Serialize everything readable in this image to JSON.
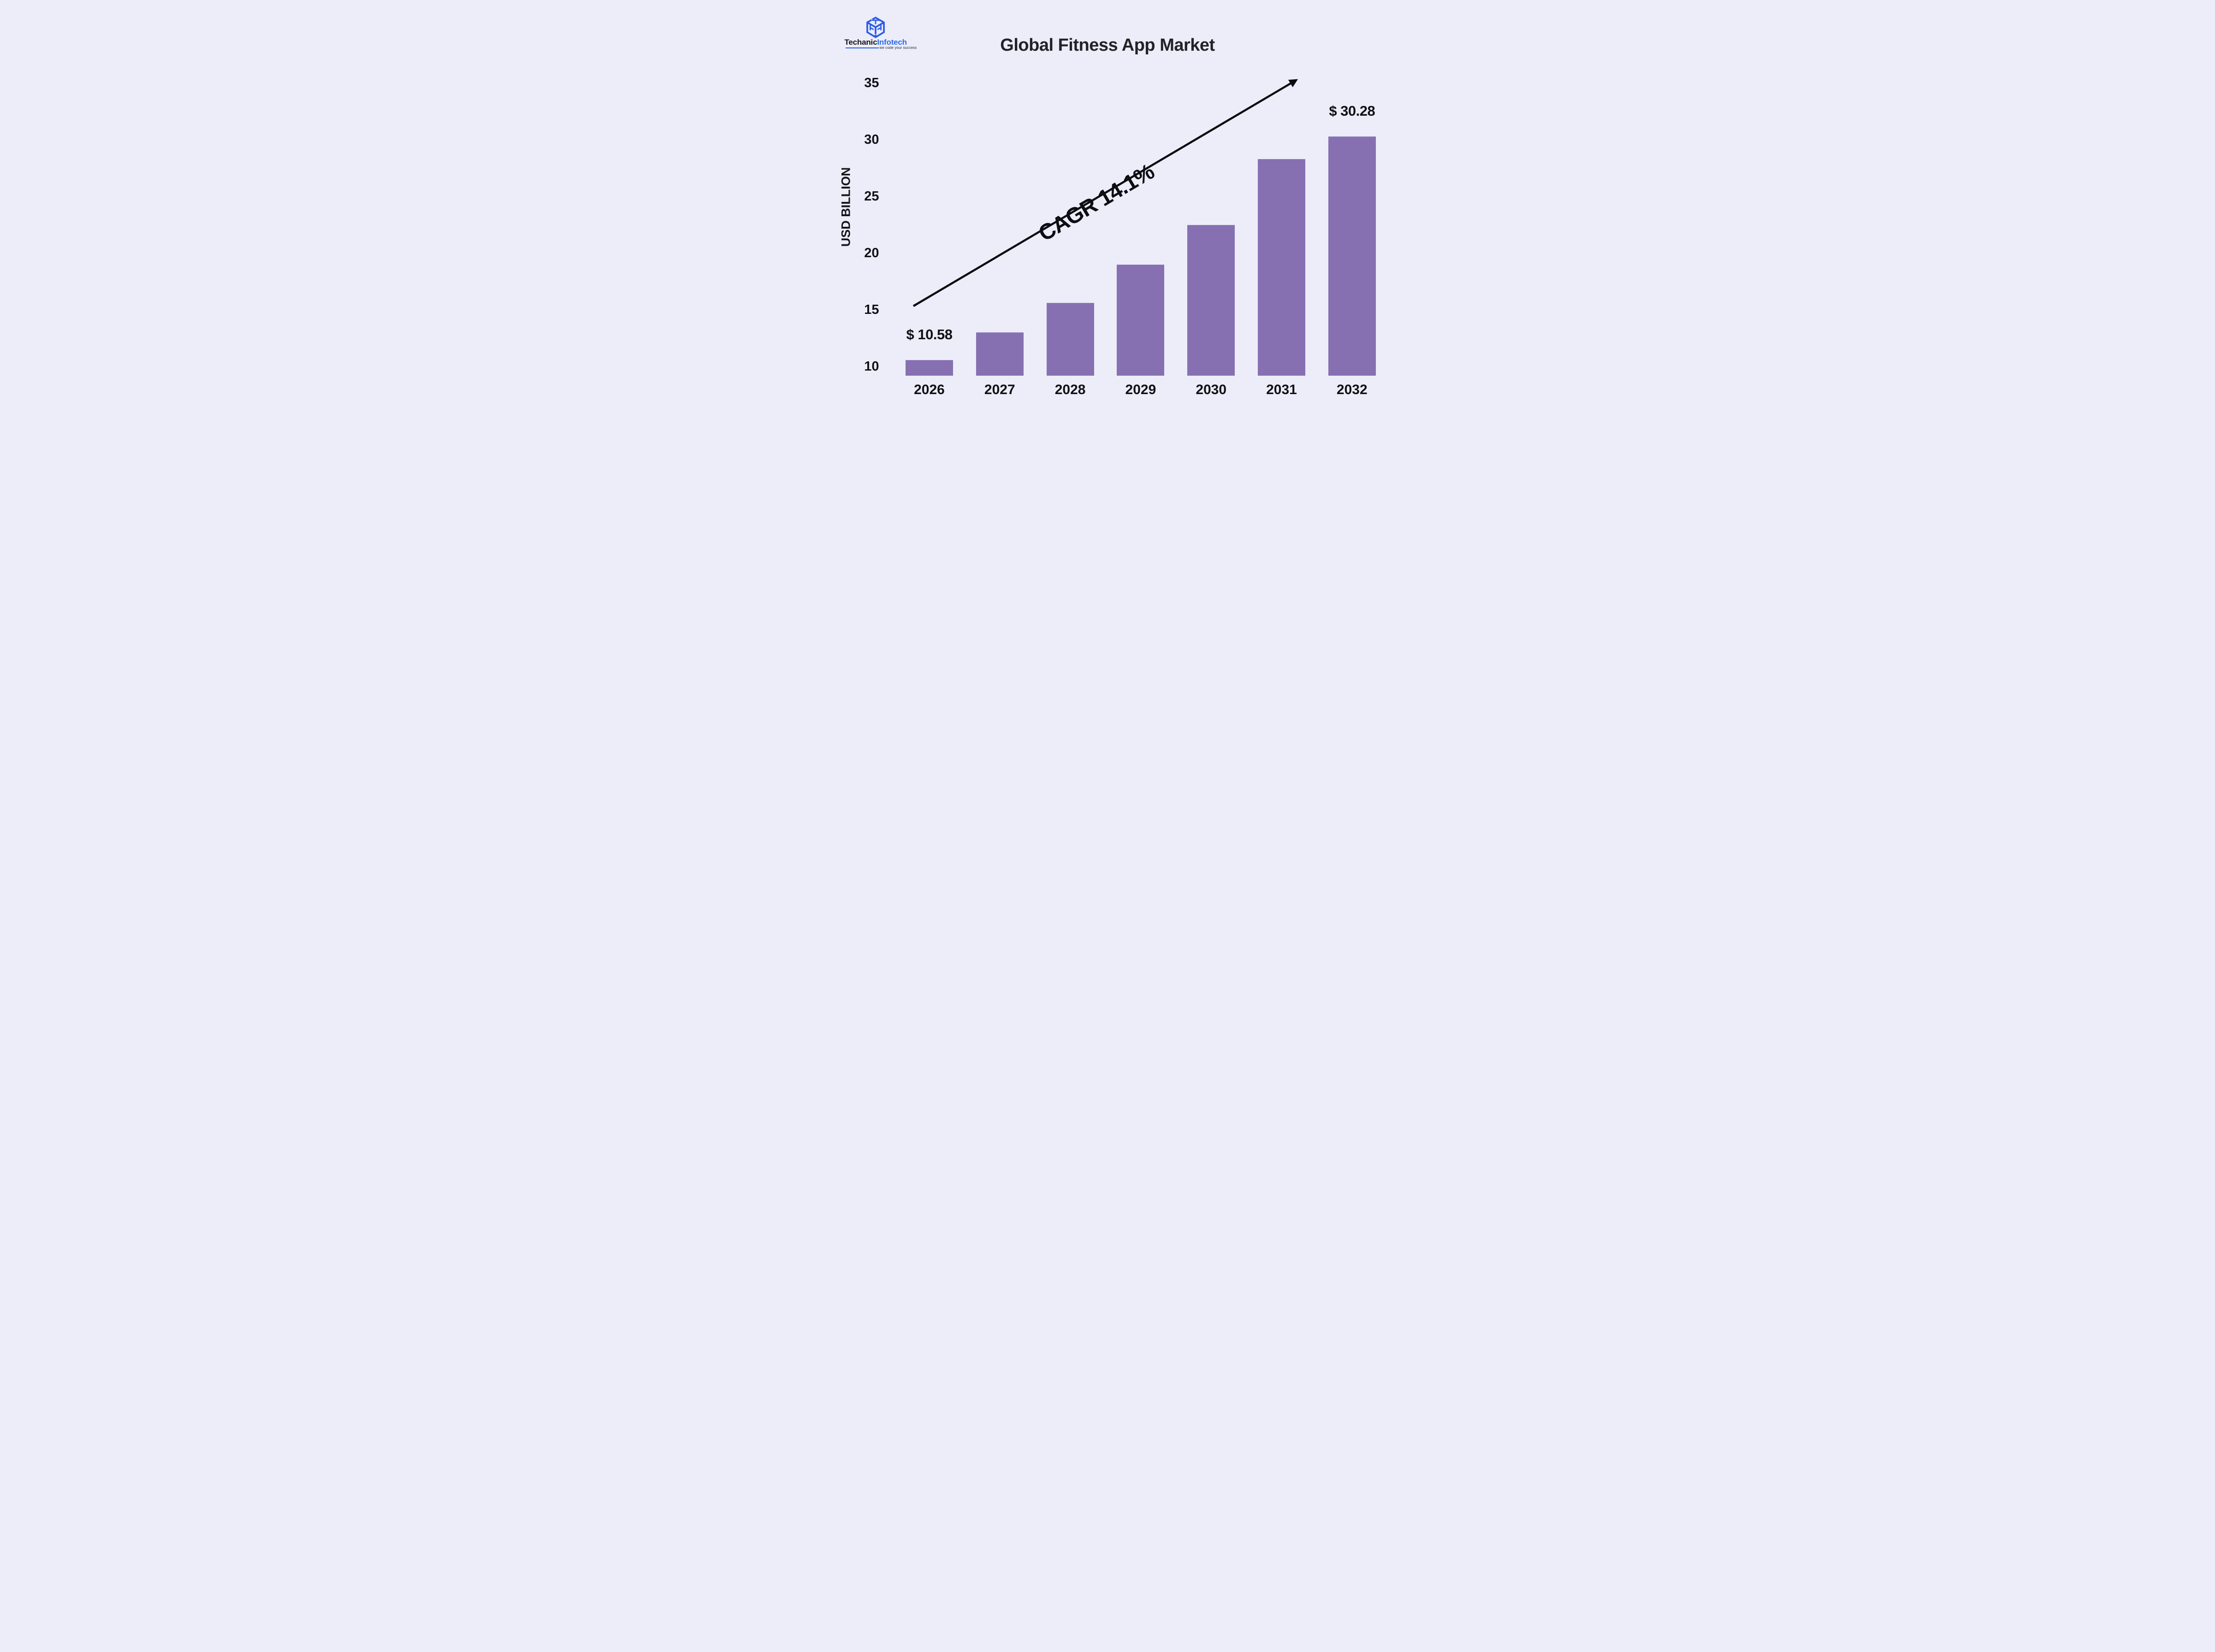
{
  "logo": {
    "brand_black": "Techanic",
    "brand_blue": "Infotech",
    "tagline": "we code your success",
    "icon_name": "cube-logo-icon",
    "brand_blue_color": "#2E6BEA",
    "icon_blue_color": "#2A5BE8"
  },
  "chart_data": {
    "type": "bar",
    "title": "Global Fitness App Market",
    "ylabel": "USD BILLION",
    "xlabel": "",
    "categories": [
      "2026",
      "2027",
      "2028",
      "2029",
      "2030",
      "2031",
      "2032"
    ],
    "values": [
      10.58,
      13.0,
      15.6,
      19.0,
      22.5,
      28.3,
      30.28
    ],
    "value_labels": {
      "2026": "$ 10.58",
      "2032": "$ 30.28"
    },
    "yticks": [
      10,
      15,
      20,
      25,
      30,
      35
    ],
    "ylim": [
      9.2,
      36.5
    ],
    "grid": false,
    "legend": "none",
    "bar_color": "#8670B2",
    "background_color": "#ECEDF8",
    "annotation": {
      "text": "CAGR 14.1%",
      "type": "trend-arrow",
      "arrow_color": "#0A0A0F"
    }
  }
}
